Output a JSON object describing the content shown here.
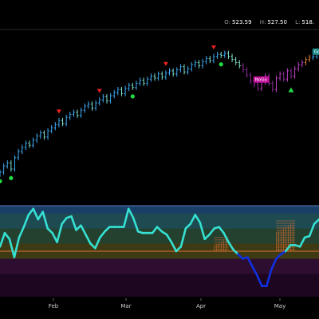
{
  "header": {
    "open_label": "O:",
    "open_value": "523.59",
    "high_label": "H:",
    "high_value": "527.50",
    "low_label": "L:",
    "low_value": "518."
  },
  "colors": {
    "background": "#000000",
    "bull": "#3fa9f5",
    "bull_light": "#7fe0c8",
    "bear": "#c040c8",
    "bear_dark": "#8a2a9a",
    "orange": "#e08030",
    "up_dot": "#22dd44",
    "down_marker": "#ee2222",
    "osc_line": "#35e0d2",
    "osc_low_line": "#1030e0",
    "zero_line": "#e07030"
  },
  "chart_data": [
    {
      "type": "ohlc",
      "x_axis": {
        "ticks": [
          "Feb",
          "Mar",
          "Apr",
          "May"
        ]
      },
      "series": [
        {
          "close": [
            412,
            418,
            421,
            415,
            426,
            432,
            436,
            440,
            438,
            443,
            447,
            450,
            446,
            452,
            455,
            458,
            462,
            459,
            465,
            468,
            470,
            467,
            472,
            476,
            478,
            474,
            479,
            482,
            485,
            481,
            486,
            489,
            492,
            488,
            493,
            496,
            494,
            498,
            501,
            498,
            502,
            505,
            503,
            507,
            504,
            508,
            510,
            507,
            511,
            514,
            509,
            512,
            516,
            518,
            515,
            519,
            522,
            520,
            524,
            526,
            525,
            527,
            524,
            521,
            518,
            515,
            511,
            506,
            500,
            497,
            493,
            499,
            505,
            498,
            492,
            503,
            507,
            502,
            510,
            505,
            512,
            516,
            518,
            521,
            523,
            524,
            526,
            528
          ]
        }
      ],
      "signals": {
        "up_dots": [
          0,
          3,
          36,
          60
        ],
        "down_markers": [
          16,
          27,
          45,
          58
        ],
        "up_triangles": [
          79
        ]
      },
      "tags": [
        {
          "text": "NoGo",
          "index": 69
        },
        {
          "text": "Go",
          "index": 85
        }
      ]
    },
    {
      "type": "line",
      "values": [
        0.3,
        1.2,
        0.8,
        -0.4,
        0.9,
        1.6,
        2.4,
        2.8,
        2.1,
        2.6,
        1.5,
        1.2,
        0.6,
        1.8,
        2.2,
        2.3,
        1.4,
        1.7,
        1.1,
        0.5,
        0.2,
        0.9,
        1.3,
        1.6,
        1.6,
        1.6,
        1.6,
        2.8,
        2.2,
        1.3,
        1.2,
        1.2,
        1.2,
        1.6,
        1.3,
        1.1,
        0.6,
        0.0,
        0.3,
        1.5,
        1.8,
        2.4,
        1.9,
        0.8,
        1.1,
        1.5,
        1.6,
        1.2,
        0.6,
        0.1,
        -0.2,
        -0.5,
        -0.4,
        -1.0,
        -1.6,
        -2.3,
        -2.3,
        -1.2,
        -0.5,
        -0.2,
        0.0,
        0.4,
        0.4,
        0.3,
        0.9,
        1.0,
        1.8,
        2.1
      ],
      "bands": [
        2.5,
        1.5,
        0.5,
        -0.5,
        -1.5,
        -2.5
      ],
      "zero_level": 0
    }
  ]
}
